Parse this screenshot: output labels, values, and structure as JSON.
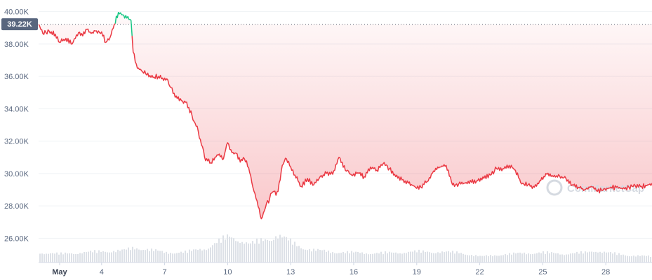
{
  "chart_data": {
    "type": "line",
    "y_axis": {
      "ticks": [
        "26.00K",
        "28.00K",
        "30.00K",
        "32.00K",
        "34.00K",
        "36.00K",
        "38.00K",
        "40.00K"
      ],
      "tick_values": [
        26000,
        28000,
        30000,
        32000,
        34000,
        36000,
        38000,
        40000
      ],
      "range": [
        24500,
        40500
      ]
    },
    "x_axis": {
      "ticks": [
        {
          "label": "May",
          "day": 2,
          "bold": true
        },
        {
          "label": "4",
          "day": 4
        },
        {
          "label": "7",
          "day": 7
        },
        {
          "label": "10",
          "day": 10
        },
        {
          "label": "13",
          "day": 13
        },
        {
          "label": "16",
          "day": 16
        },
        {
          "label": "19",
          "day": 19
        },
        {
          "label": "22",
          "day": 22
        },
        {
          "label": "25",
          "day": 25
        },
        {
          "label": "28",
          "day": 28
        }
      ],
      "range": [
        1.0,
        30.2
      ]
    },
    "current_price": {
      "label": "39.22K",
      "value": 39220
    },
    "series": [
      {
        "x": [
          1.0,
          1.2,
          1.5,
          1.8,
          2.0,
          2.3,
          2.6,
          2.9,
          3.1,
          3.3,
          3.5,
          3.7,
          3.9,
          4.0,
          4.2,
          4.4,
          4.6,
          4.8,
          5.0,
          5.2,
          5.4,
          5.5,
          5.7,
          5.9,
          6.1,
          6.3,
          6.5,
          6.7,
          6.9,
          7.1,
          7.3,
          7.5,
          7.8,
          8.0,
          8.3,
          8.6,
          8.9,
          9.2,
          9.4,
          9.6,
          9.8,
          9.9,
          10.0,
          10.2,
          10.4,
          10.6,
          10.8,
          11.0,
          11.2,
          11.4,
          11.6,
          11.8,
          12.0,
          12.1,
          12.2,
          12.3,
          12.4,
          12.6,
          12.8,
          13.0,
          13.2,
          13.5,
          13.8,
          14.1,
          14.4,
          14.7,
          15.0,
          15.3,
          15.6,
          15.9,
          16.2,
          16.5,
          16.8,
          17.1,
          17.4,
          17.7,
          18.0,
          18.3,
          18.6,
          18.9,
          19.2,
          19.5,
          19.8,
          20.1,
          20.4,
          20.7,
          21.0,
          21.3,
          21.6,
          21.9,
          22.2,
          22.5,
          22.8,
          23.1,
          23.4,
          23.7,
          24.0,
          24.3,
          24.6,
          24.9,
          25.2,
          25.5,
          25.8,
          26.1,
          26.4,
          26.7,
          27.0,
          27.3,
          27.6,
          27.9,
          28.2,
          28.5,
          28.8,
          29.1,
          29.4,
          29.7,
          30.0,
          30.2
        ],
        "y": [
          39220,
          38650,
          38800,
          38600,
          38100,
          38350,
          38000,
          38700,
          38500,
          38900,
          38650,
          38800,
          38700,
          38750,
          38100,
          38400,
          39200,
          39950,
          39800,
          39600,
          39450,
          37500,
          36500,
          36350,
          36150,
          36050,
          35950,
          36000,
          35900,
          35850,
          35300,
          34700,
          34500,
          34400,
          33600,
          32600,
          31000,
          30650,
          31000,
          31200,
          30900,
          31450,
          31900,
          31300,
          31250,
          30700,
          30900,
          30350,
          29150,
          28300,
          27200,
          27900,
          28450,
          28800,
          28900,
          28650,
          28900,
          30500,
          30900,
          30400,
          29900,
          29200,
          29700,
          29300,
          29800,
          30000,
          29950,
          31000,
          30200,
          29900,
          30050,
          29800,
          30400,
          30200,
          30600,
          30300,
          29800,
          29600,
          29400,
          29200,
          29150,
          29500,
          30150,
          30400,
          30500,
          29300,
          29350,
          29400,
          29450,
          29550,
          29700,
          29900,
          30300,
          30300,
          30500,
          30200,
          29350,
          29300,
          29150,
          29550,
          29950,
          29800,
          29850,
          29700,
          29300,
          29150,
          29000,
          29200,
          28900,
          29050,
          29100,
          29150,
          29050,
          29150,
          29250,
          29200,
          29300,
          29400
        ]
      }
    ],
    "volume": {
      "x": [
        1.0,
        2.0,
        3.0,
        4.0,
        5.0,
        5.5,
        6.0,
        7.0,
        8.0,
        9.0,
        9.5,
        10.0,
        10.5,
        11.0,
        11.5,
        12.0,
        12.3,
        12.6,
        13.0,
        13.5,
        14.0,
        15.0,
        16.0,
        17.0,
        18.0,
        19.0,
        20.0,
        21.0,
        22.0,
        23.0,
        24.0,
        25.0,
        26.0,
        27.0,
        27.5,
        28.0,
        29.0,
        30.2
      ],
      "v": [
        0.3,
        0.26,
        0.3,
        0.34,
        0.36,
        0.44,
        0.42,
        0.3,
        0.32,
        0.44,
        0.62,
        0.78,
        0.7,
        0.55,
        0.65,
        0.74,
        0.82,
        0.75,
        0.62,
        0.46,
        0.38,
        0.32,
        0.3,
        0.28,
        0.3,
        0.33,
        0.32,
        0.3,
        0.18,
        0.24,
        0.28,
        0.3,
        0.26,
        0.3,
        0.36,
        0.3,
        0.22,
        0.18
      ]
    },
    "grid": true,
    "legend": "none",
    "watermark": "CoinMarketCap"
  }
}
